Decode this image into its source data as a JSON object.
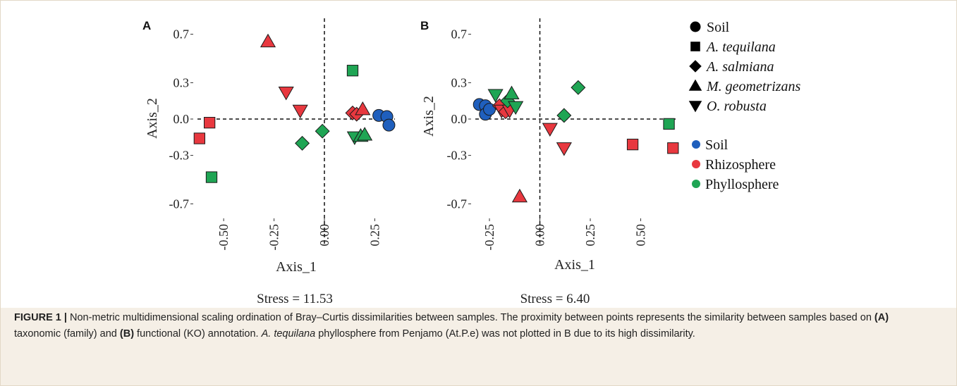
{
  "chart_data": [
    {
      "type": "scatter",
      "panel_label": "A",
      "xlabel": "Axis_1",
      "ylabel": "Axis_2",
      "x_ticks": [
        -0.5,
        -0.25,
        0.0,
        0.25
      ],
      "x_tick_labels": [
        "-0.50",
        "-0.25",
        "0.00",
        "0.25"
      ],
      "y_ticks": [
        -0.7,
        -0.3,
        0.0,
        0.3,
        0.7
      ],
      "y_tick_labels": [
        "-0.7",
        "-0.3",
        "0.0",
        "0.3",
        "0.7"
      ],
      "xlim": [
        -0.63,
        0.35
      ],
      "ylim": [
        -0.75,
        0.75
      ],
      "grid": false,
      "reference_lines": {
        "x": 0,
        "y": 0,
        "style": "dashed"
      },
      "stress_label": "Stress = 11.53",
      "points": [
        {
          "x": -0.62,
          "y": -0.16,
          "shape": "square",
          "habitat": "Rhizosphere"
        },
        {
          "x": -0.57,
          "y": -0.03,
          "shape": "square",
          "habitat": "Rhizosphere"
        },
        {
          "x": -0.56,
          "y": -0.48,
          "shape": "square",
          "habitat": "Phyllosphere"
        },
        {
          "x": -0.28,
          "y": 0.64,
          "shape": "triangle",
          "habitat": "Rhizosphere"
        },
        {
          "x": -0.19,
          "y": 0.22,
          "shape": "inverted-triangle",
          "habitat": "Rhizosphere"
        },
        {
          "x": -0.12,
          "y": 0.07,
          "shape": "inverted-triangle",
          "habitat": "Rhizosphere"
        },
        {
          "x": -0.11,
          "y": -0.2,
          "shape": "diamond",
          "habitat": "Phyllosphere"
        },
        {
          "x": -0.01,
          "y": -0.1,
          "shape": "diamond",
          "habitat": "Phyllosphere"
        },
        {
          "x": 0.14,
          "y": 0.4,
          "shape": "square",
          "habitat": "Phyllosphere"
        },
        {
          "x": 0.14,
          "y": 0.05,
          "shape": "diamond",
          "habitat": "Rhizosphere"
        },
        {
          "x": 0.16,
          "y": 0.04,
          "shape": "diamond",
          "habitat": "Rhizosphere"
        },
        {
          "x": 0.19,
          "y": 0.08,
          "shape": "triangle",
          "habitat": "Rhizosphere"
        },
        {
          "x": 0.15,
          "y": -0.15,
          "shape": "inverted-triangle",
          "habitat": "Phyllosphere"
        },
        {
          "x": 0.18,
          "y": -0.14,
          "shape": "triangle",
          "habitat": "Phyllosphere"
        },
        {
          "x": 0.2,
          "y": -0.13,
          "shape": "triangle",
          "habitat": "Phyllosphere"
        },
        {
          "x": 0.27,
          "y": 0.03,
          "shape": "circle",
          "habitat": "Soil"
        },
        {
          "x": 0.31,
          "y": 0.02,
          "shape": "circle",
          "habitat": "Soil"
        },
        {
          "x": 0.32,
          "y": -0.05,
          "shape": "circle",
          "habitat": "Soil"
        }
      ]
    },
    {
      "type": "scatter",
      "panel_label": "B",
      "xlabel": "Axis_1",
      "ylabel": "Axis_2",
      "x_ticks": [
        -0.25,
        0.0,
        0.25,
        0.5
      ],
      "x_tick_labels": [
        "-0.25",
        "0.00",
        "0.25",
        "0.50"
      ],
      "y_ticks": [
        -0.7,
        -0.3,
        0.0,
        0.3,
        0.7
      ],
      "y_tick_labels": [
        "-0.7",
        "-0.3",
        "0.0",
        "0.3",
        "0.7"
      ],
      "xlim": [
        -0.32,
        0.68
      ],
      "ylim": [
        -0.75,
        0.75
      ],
      "grid": false,
      "reference_lines": {
        "x": 0,
        "y": 0,
        "style": "dashed"
      },
      "stress_label": "Stress = 6.40",
      "points": [
        {
          "x": -0.3,
          "y": 0.12,
          "shape": "circle",
          "habitat": "Soil"
        },
        {
          "x": -0.27,
          "y": 0.11,
          "shape": "circle",
          "habitat": "Soil"
        },
        {
          "x": -0.27,
          "y": 0.04,
          "shape": "circle",
          "habitat": "Soil"
        },
        {
          "x": -0.25,
          "y": 0.08,
          "shape": "circle",
          "habitat": "Soil"
        },
        {
          "x": -0.22,
          "y": 0.2,
          "shape": "inverted-triangle",
          "habitat": "Phyllosphere"
        },
        {
          "x": -0.2,
          "y": 0.11,
          "shape": "diamond",
          "habitat": "Rhizosphere"
        },
        {
          "x": -0.19,
          "y": 0.07,
          "shape": "inverted-triangle",
          "habitat": "Rhizosphere"
        },
        {
          "x": -0.17,
          "y": 0.06,
          "shape": "diamond",
          "habitat": "Rhizosphere"
        },
        {
          "x": -0.15,
          "y": 0.07,
          "shape": "inverted-triangle",
          "habitat": "Rhizosphere"
        },
        {
          "x": -0.16,
          "y": 0.15,
          "shape": "diamond",
          "habitat": "Phyllosphere"
        },
        {
          "x": -0.14,
          "y": 0.21,
          "shape": "triangle",
          "habitat": "Phyllosphere"
        },
        {
          "x": -0.12,
          "y": 0.1,
          "shape": "inverted-triangle",
          "habitat": "Phyllosphere"
        },
        {
          "x": -0.1,
          "y": -0.64,
          "shape": "triangle",
          "habitat": "Rhizosphere"
        },
        {
          "x": 0.05,
          "y": -0.08,
          "shape": "inverted-triangle",
          "habitat": "Rhizosphere"
        },
        {
          "x": 0.12,
          "y": -0.24,
          "shape": "inverted-triangle",
          "habitat": "Rhizosphere"
        },
        {
          "x": 0.12,
          "y": 0.03,
          "shape": "diamond",
          "habitat": "Phyllosphere"
        },
        {
          "x": 0.19,
          "y": 0.26,
          "shape": "diamond",
          "habitat": "Phyllosphere"
        },
        {
          "x": 0.46,
          "y": -0.21,
          "shape": "square",
          "habitat": "Rhizosphere"
        },
        {
          "x": 0.64,
          "y": -0.04,
          "shape": "square",
          "habitat": "Phyllosphere"
        },
        {
          "x": 0.66,
          "y": -0.24,
          "shape": "square",
          "habitat": "Rhizosphere"
        }
      ]
    }
  ],
  "legend": {
    "placement": "right",
    "shape_entries": [
      {
        "shape": "circle",
        "label": "Soil",
        "italic": false
      },
      {
        "shape": "square",
        "label": "A. tequilana",
        "italic": true
      },
      {
        "shape": "diamond",
        "label": "A. salmiana",
        "italic": true
      },
      {
        "shape": "triangle",
        "label": "M. geometrizans",
        "italic": true
      },
      {
        "shape": "inverted-triangle",
        "label": "O. robusta",
        "italic": true
      }
    ],
    "color_entries": [
      {
        "label": "Soil",
        "color": "#1f5fbd"
      },
      {
        "label": "Rhizosphere",
        "color": "#e8383f"
      },
      {
        "label": "Phyllosphere",
        "color": "#1fa554"
      }
    ]
  },
  "colors": {
    "Soil": "#1f5fbd",
    "Rhizosphere": "#e8383f",
    "Phyllosphere": "#1fa554",
    "caption_background": "#f5efe6",
    "frame_border": "#e2d8c7"
  },
  "caption": {
    "figure_label": "FIGURE 1 |",
    "text_1": " Non-metric multidimensional scaling ordination of Bray–Curtis dissimilarities between samples. The proximity between points represents the similarity between samples based on ",
    "bold_a": "(A)",
    "text_2": " taxonomic (family) and ",
    "bold_b": "(B)",
    "text_3": " functional (KO) annotation. ",
    "italic_species": "A. tequilana",
    "text_4": " phyllosphere from Penjamo (At.P.e) was not plotted in B due to its high dissimilarity."
  }
}
